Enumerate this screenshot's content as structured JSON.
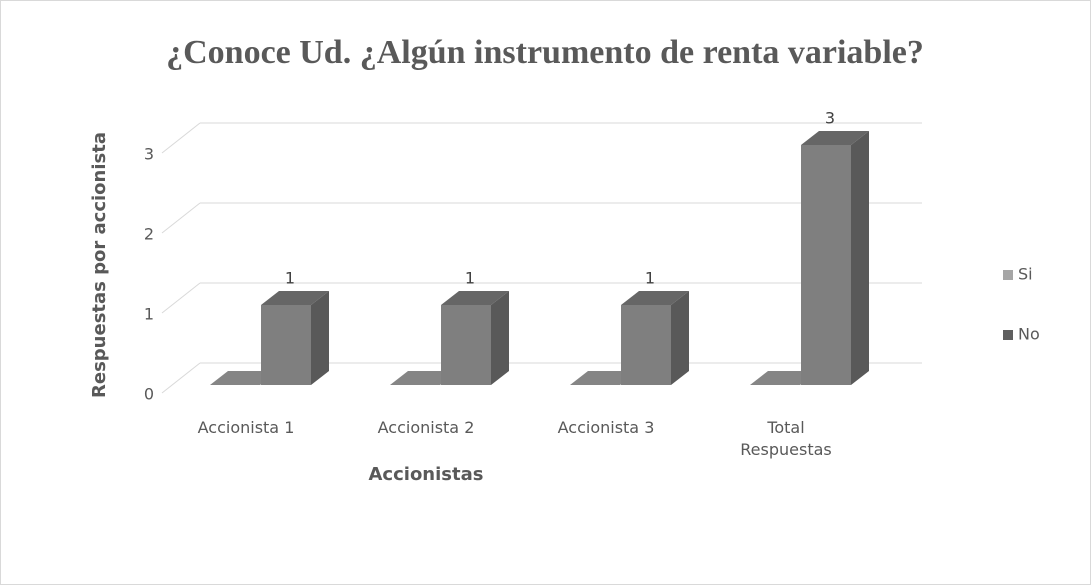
{
  "chart_data": {
    "type": "bar3d",
    "title": "¿Conoce Ud. ¿Algún instrumento de renta variable?",
    "x_label": "Accionistas",
    "y_label": "Respuestas por accionista",
    "categories": [
      "Accionista 1",
      "Accionista 2",
      "Accionista 3",
      "Total Respuestas"
    ],
    "series": [
      {
        "name": "Si",
        "color": "#a6a6a6",
        "values": [
          0,
          0,
          0,
          0
        ]
      },
      {
        "name": "No",
        "color": "#7f7f7f",
        "values": [
          1,
          1,
          1,
          3
        ]
      }
    ],
    "data_labels_series": "No",
    "ylim": [
      0,
      3
    ],
    "yticks": [
      0,
      1,
      2,
      3
    ],
    "grid": true,
    "legend": "right"
  }
}
